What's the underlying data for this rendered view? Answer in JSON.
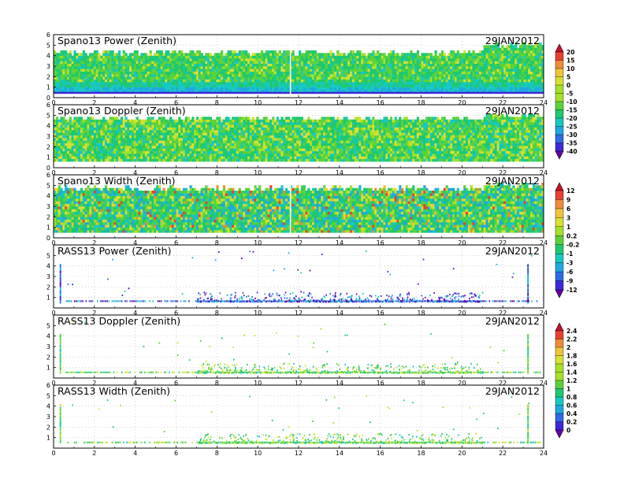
{
  "colors": {
    "rainbow": [
      "#6a00a8",
      "#3d2ad6",
      "#2e6ae8",
      "#1fa7e0",
      "#17c8c0",
      "#1ec870",
      "#5bd23a",
      "#a5e02a",
      "#d8e034",
      "#f0c23a",
      "#f08a3a",
      "#e8402f",
      "#c8102e"
    ]
  },
  "chart_data": [
    {
      "type": "heatmap",
      "title": "Spano13 Power (Zenith)",
      "date": "29JAN2012",
      "x_ticks": [
        "0",
        "2",
        "4",
        "6",
        "8",
        "10",
        "12",
        "14",
        "16",
        "18",
        "20",
        "22",
        "24"
      ],
      "y_ticks": [
        "0",
        "1",
        "2",
        "3",
        "4",
        "5",
        "6"
      ],
      "xlim": [
        0,
        24
      ],
      "ylim": [
        0,
        6
      ],
      "colorbar": "power",
      "coverage": {
        "bottom": 0.5,
        "top": 4.2,
        "top_late": 4.9
      },
      "gaps": [
        11.6
      ]
    },
    {
      "type": "heatmap",
      "title": "Spano13 Doppler (Zenith)",
      "date": "29JAN2012",
      "x_ticks": [
        "0",
        "2",
        "4",
        "6",
        "8",
        "10",
        "12",
        "14",
        "16",
        "18",
        "20",
        "22",
        "24"
      ],
      "y_ticks": [
        "0",
        "1",
        "2",
        "3",
        "4",
        "5",
        "6"
      ],
      "xlim": [
        0,
        24
      ],
      "ylim": [
        0,
        6
      ],
      "colorbar": "power",
      "coverage": {
        "bottom": 0.6,
        "top": 4.6,
        "top_late": 4.9
      },
      "gaps": []
    },
    {
      "type": "heatmap",
      "title": "Spano13 Width (Zenith)",
      "date": "29JAN2012",
      "x_ticks": [
        "0",
        "2",
        "4",
        "6",
        "8",
        "10",
        "12",
        "14",
        "16",
        "18",
        "20",
        "22",
        "24"
      ],
      "y_ticks": [
        "0",
        "1",
        "2",
        "3",
        "4",
        "5",
        "6"
      ],
      "xlim": [
        0,
        24
      ],
      "ylim": [
        0,
        6
      ],
      "colorbar": "doppler",
      "coverage": {
        "bottom": 0.5,
        "top": 4.6,
        "top_late": 4.9
      },
      "gaps": [
        11.6
      ]
    },
    {
      "type": "scatter",
      "title": "RASS13 Power (Zenith)",
      "date": "29JAN2012",
      "x_ticks": [
        "0",
        "2",
        "4",
        "6",
        "8",
        "10",
        "12",
        "14",
        "16",
        "18",
        "20",
        "22",
        "24"
      ],
      "y_ticks": [
        "1",
        "2",
        "3",
        "4",
        "5"
      ],
      "xlim": [
        0,
        24
      ],
      "ylim": [
        0,
        6
      ],
      "colorbar": "doppler",
      "baseline": 0.65,
      "band": [
        7,
        21
      ],
      "spikes": [
        0.3,
        23.2
      ]
    },
    {
      "type": "scatter",
      "title": "RASS13 Doppler (Zenith)",
      "date": "29JAN2012",
      "x_ticks": [
        "0",
        "2",
        "4",
        "6",
        "8",
        "10",
        "12",
        "14",
        "16",
        "18",
        "20",
        "22",
        "24"
      ],
      "y_ticks": [
        "1",
        "2",
        "3",
        "4",
        "5"
      ],
      "xlim": [
        0,
        24
      ],
      "ylim": [
        0,
        6
      ],
      "colorbar": "width",
      "baseline": 0.55,
      "band": [
        7,
        21
      ],
      "spikes": [
        0.3,
        23.2
      ]
    },
    {
      "type": "scatter",
      "title": "RASS13 Width (Zenith)",
      "date": "29JAN2012",
      "x_ticks": [
        "0",
        "2",
        "4",
        "6",
        "8",
        "10",
        "12",
        "14",
        "16",
        "18",
        "20",
        "22",
        "24"
      ],
      "y_ticks": [
        "1",
        "2",
        "3",
        "4",
        "5",
        "6"
      ],
      "xlim": [
        0,
        24
      ],
      "ylim": [
        0,
        6
      ],
      "colorbar": "width",
      "baseline": 0.55,
      "band": [
        7,
        21
      ],
      "spikes": [
        0.3,
        23.2
      ]
    }
  ],
  "colorbars": {
    "power": {
      "labels": [
        "20",
        "15",
        "10",
        "5",
        "0",
        "-5",
        "-10",
        "-15",
        "-20",
        "-25",
        "-30",
        "-35",
        "-40"
      ]
    },
    "doppler": {
      "labels": [
        "12",
        "9",
        "6",
        "3",
        "1",
        "0.2",
        "-0.2",
        "-1",
        "-3",
        "-6",
        "-9",
        "-12"
      ]
    },
    "width": {
      "labels": [
        "2.4",
        "2.2",
        "2",
        "1.8",
        "1.6",
        "1.4",
        "1.2",
        "1",
        "0.8",
        "0.6",
        "0.4",
        "0.2",
        "0"
      ]
    }
  }
}
